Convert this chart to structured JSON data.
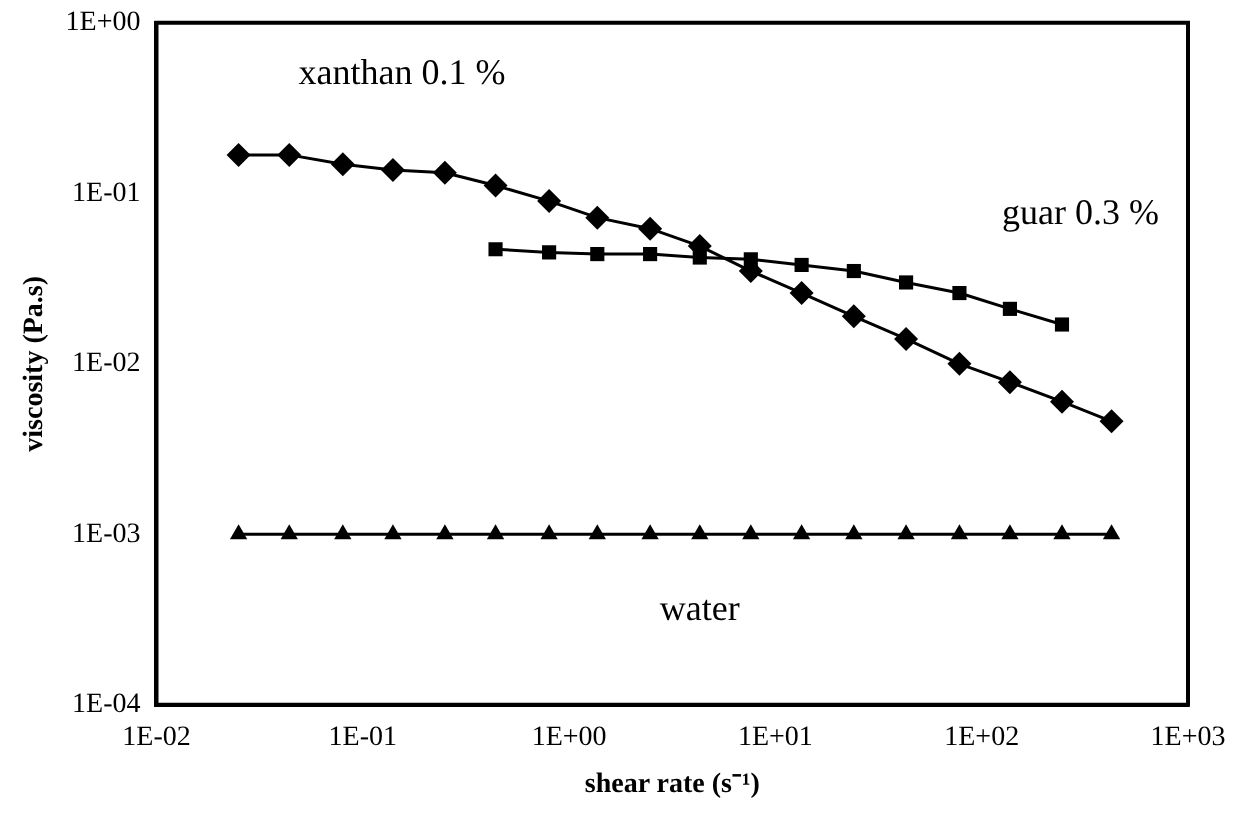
{
  "chart_data": {
    "type": "line",
    "xlabel": "shear rate (s⁻¹)",
    "ylabel": "viscosity (Pa.s)",
    "log": "xy",
    "grid": false,
    "legend": false,
    "line_style": "solid",
    "xlim": [
      0.01,
      1000
    ],
    "xticks": [
      {
        "value": 0.01,
        "label": "1E-02"
      },
      {
        "value": 0.1,
        "label": "1E-01"
      },
      {
        "value": 1,
        "label": "1E+00"
      },
      {
        "value": 10,
        "label": "1E+01"
      },
      {
        "value": 100,
        "label": "1E+02"
      },
      {
        "value": 1000,
        "label": "1E+03"
      }
    ],
    "ylim": [
      0.0001,
      1
    ],
    "yticks": [
      {
        "value": 0.0001,
        "label": "1E-04"
      },
      {
        "value": 0.001,
        "label": "1E-03"
      },
      {
        "value": 0.01,
        "label": "1E-02"
      },
      {
        "value": 0.1,
        "label": "1E-01"
      },
      {
        "value": 1,
        "label": "1E+00"
      }
    ],
    "series": [
      {
        "name": "xanthan 0.1 %",
        "color": "#000000",
        "marker": "diamond",
        "x": [
          0.025,
          0.044,
          0.08,
          0.14,
          0.25,
          0.44,
          0.8,
          1.37,
          2.47,
          4.3,
          7.6,
          13.4,
          24,
          43,
          78,
          137,
          245,
          426
        ],
        "values": [
          0.168,
          0.168,
          0.148,
          0.137,
          0.132,
          0.111,
          0.09,
          0.072,
          0.062,
          0.049,
          0.035,
          0.026,
          0.019,
          0.014,
          0.01,
          0.0078,
          0.006,
          0.0046
        ]
      },
      {
        "name": "guar 0.3 %",
        "color": "#000000",
        "marker": "square",
        "x": [
          0.44,
          0.8,
          1.37,
          2.47,
          4.3,
          7.6,
          13.4,
          24,
          43,
          78,
          137,
          245
        ],
        "values": [
          0.047,
          0.045,
          0.044,
          0.044,
          0.042,
          0.041,
          0.038,
          0.035,
          0.03,
          0.026,
          0.021,
          0.017
        ]
      },
      {
        "name": "water",
        "color": "#000000",
        "marker": "triangle",
        "x": [
          0.025,
          0.044,
          0.08,
          0.14,
          0.25,
          0.44,
          0.8,
          1.37,
          2.47,
          4.3,
          7.6,
          13.4,
          24,
          43,
          78,
          137,
          245,
          426
        ],
        "values": [
          0.001,
          0.001,
          0.001,
          0.001,
          0.001,
          0.001,
          0.001,
          0.001,
          0.001,
          0.001,
          0.001,
          0.001,
          0.001,
          0.001,
          0.001,
          0.001,
          0.001,
          0.001
        ]
      }
    ]
  }
}
